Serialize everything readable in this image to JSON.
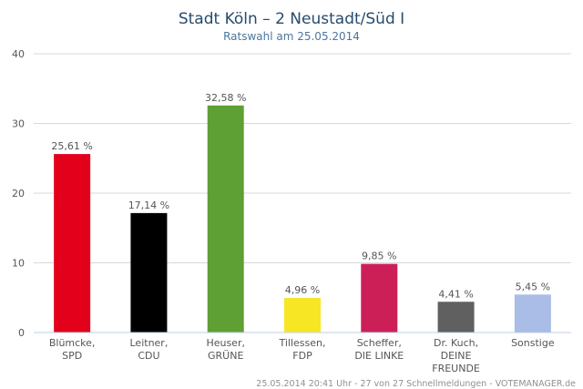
{
  "chart_data": {
    "type": "bar",
    "title": "Stadt Köln – 2 Neustadt/Süd I",
    "subtitle": "Ratswahl am 25.05.2014",
    "ylim": [
      0,
      40
    ],
    "yticks": [
      "0",
      "10",
      "20",
      "30",
      "40"
    ],
    "grid": true,
    "categories": [
      [
        "Blümcke,",
        "SPD"
      ],
      [
        "Leitner,",
        "CDU"
      ],
      [
        "Heuser,",
        "GRÜNE"
      ],
      [
        "Tillessen,",
        "FDP"
      ],
      [
        "Scheffer,",
        "DIE LINKE"
      ],
      [
        "Dr. Kuch,",
        "DEINE",
        "FREUNDE"
      ],
      [
        "Sonstige"
      ]
    ],
    "values": [
      25.61,
      17.14,
      32.58,
      4.96,
      9.85,
      4.41,
      5.45
    ],
    "data_labels": [
      "25,61 %",
      "17,14 %",
      "32,58 %",
      "4,96 %",
      "9,85 %",
      "4,41 %",
      "5,45 %"
    ],
    "colors": [
      "#e3001b",
      "#000000",
      "#5ea033",
      "#f7e623",
      "#cc1f58",
      "#606060",
      "#a9bde6"
    ]
  },
  "footer": "25.05.2014 20:41 Uhr - 27 von 27 Schnellmeldungen - VOTEMANAGER.de"
}
